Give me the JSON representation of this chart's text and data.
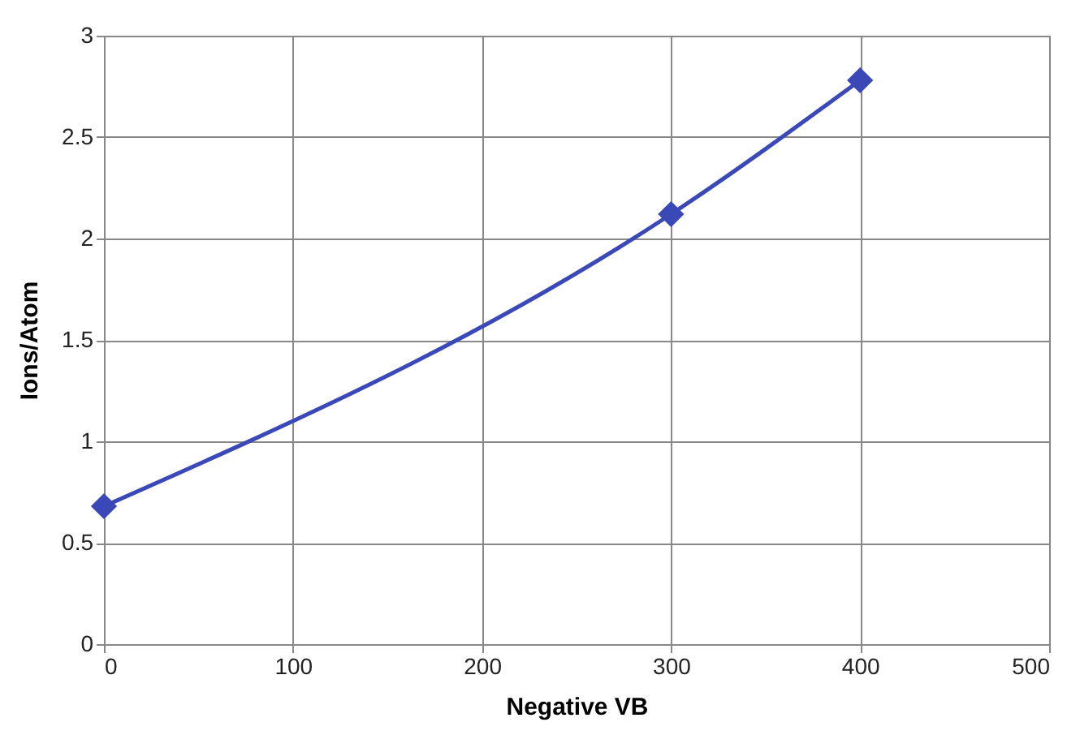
{
  "chart_data": {
    "type": "line",
    "xlabel": "Negative VB",
    "ylabel": "Ions/Atom",
    "x": [
      0,
      300,
      400
    ],
    "series": [
      {
        "color": "#3a48b8",
        "values": [
          0.68,
          2.12,
          2.78
        ]
      }
    ],
    "xlim": [
      0,
      500
    ],
    "xticks": [
      0,
      100,
      200,
      300,
      400,
      500
    ],
    "ylim": [
      0,
      3
    ],
    "yticks": [
      0,
      0.5,
      1,
      1.5,
      2,
      2.5,
      3
    ],
    "grid": true,
    "marker": "diamond",
    "line_style": "solid"
  }
}
